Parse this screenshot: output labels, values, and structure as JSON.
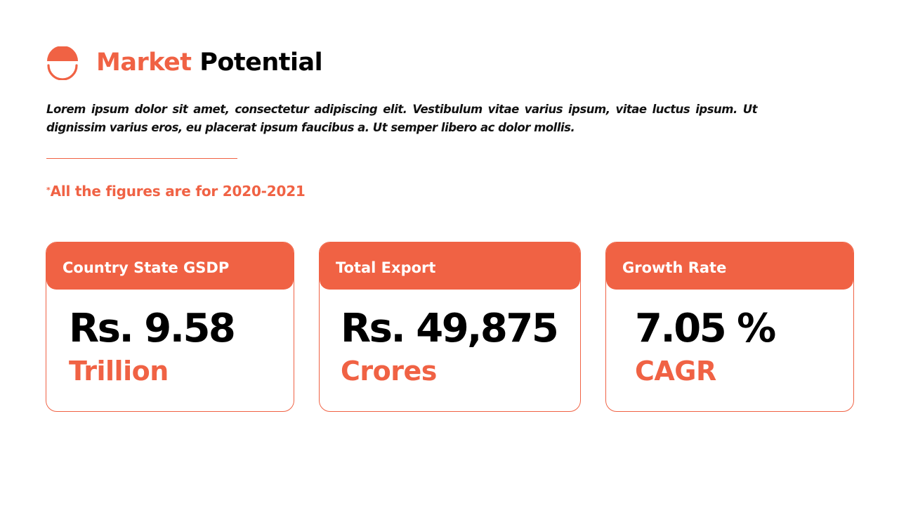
{
  "theme": {
    "accent": "#F06244"
  },
  "header": {
    "logo_icon": "half-circle-smile-icon",
    "title_accent": "Market",
    "title_rest": "Potential"
  },
  "intro": {
    "text": "Lorem ipsum dolor sit amet, consectetur adipiscing elit. Vestibulum vitae varius ipsum, vitae luctus ipsum. Ut dignissim varius eros, eu placerat ipsum faucibus a. Ut semper libero ac dolor mollis."
  },
  "note": {
    "marker": "*",
    "text": "All the figures are for 2020-2021"
  },
  "cards": [
    {
      "label": "Country State GSDP",
      "value": "Rs. 9.58",
      "unit": "Trillion"
    },
    {
      "label": "Total Export",
      "value": "Rs. 49,875",
      "unit": "Crores"
    },
    {
      "label": "Growth Rate",
      "value": "7.05 %",
      "unit": "CAGR"
    }
  ]
}
